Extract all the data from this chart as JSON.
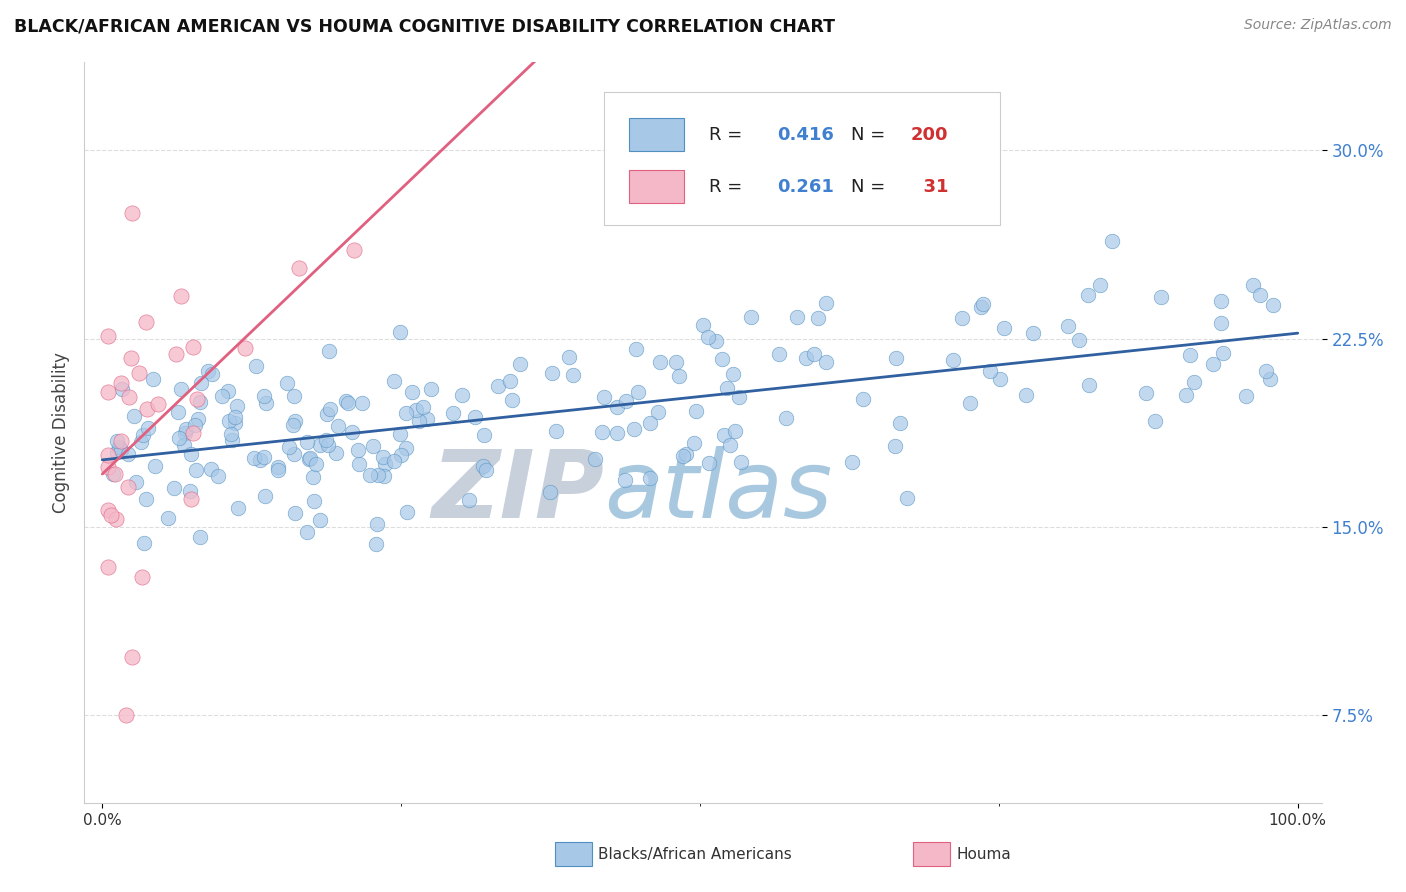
{
  "title": "BLACK/AFRICAN AMERICAN VS HOUMA COGNITIVE DISABILITY CORRELATION CHART",
  "source_text": "Source: ZipAtlas.com",
  "ylabel": "Cognitive Disability",
  "blue_R": 0.416,
  "blue_N": 200,
  "pink_R": 0.261,
  "pink_N": 31,
  "blue_color": "#A8C8E8",
  "pink_color": "#F4B8C8",
  "blue_edge_color": "#5090C0",
  "pink_edge_color": "#E06080",
  "blue_line_color": "#3060A0",
  "pink_line_color": "#E06080",
  "watermark_zip_color": "#C8D0DC",
  "watermark_atlas_color": "#A8C8E0",
  "legend_R_color": "#4080D0",
  "legend_N_color": "#D03030",
  "ytick_color": "#4080D0",
  "xtick_color": "#333333",
  "grid_color": "#DDDDDD",
  "ylim_low": 0.04,
  "ylim_high": 0.335,
  "xlim_low": -0.015,
  "xlim_high": 1.02,
  "yticks": [
    0.075,
    0.15,
    0.225,
    0.3
  ],
  "yticklabels": [
    "7.5%",
    "15.0%",
    "22.5%",
    "30.0%"
  ],
  "blue_seed": 77,
  "pink_seed": 99
}
